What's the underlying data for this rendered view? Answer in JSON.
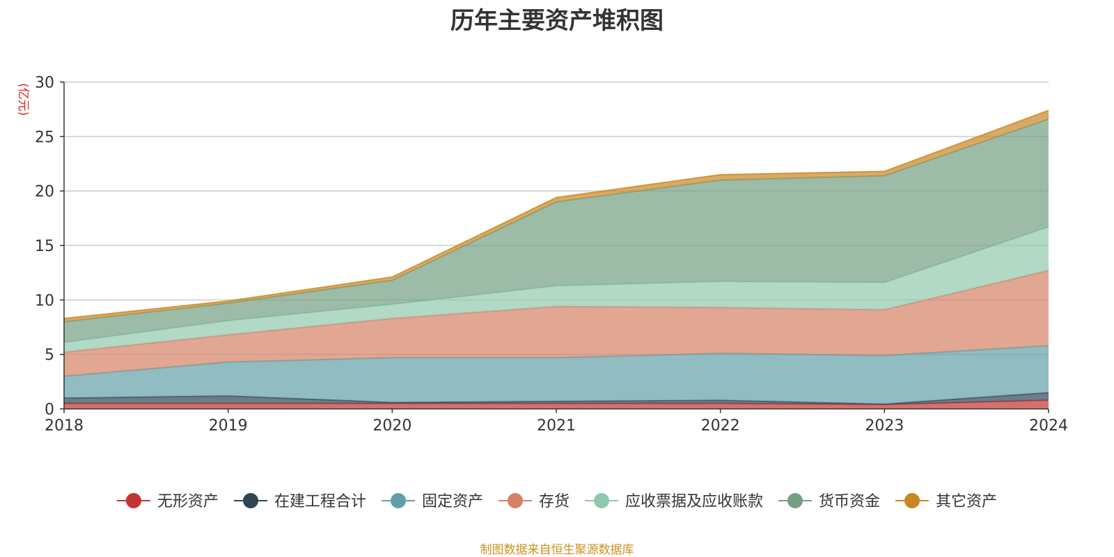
{
  "chart_data": {
    "type": "area",
    "stacked": true,
    "title": "历年主要资产堆积图",
    "unit_label": "(亿元)",
    "x": [
      "2018",
      "2019",
      "2020",
      "2021",
      "2022",
      "2023",
      "2024"
    ],
    "ylim": [
      0,
      30
    ],
    "yticks": [
      0,
      5,
      10,
      15,
      20,
      25,
      30
    ],
    "grid": true,
    "legend_position": "bottom",
    "series": [
      {
        "name": "无形资产",
        "color": "#c23531",
        "values": [
          0.5,
          0.5,
          0.5,
          0.5,
          0.5,
          0.4,
          0.8
        ]
      },
      {
        "name": "在建工程合计",
        "color": "#2f4554",
        "values": [
          0.5,
          0.7,
          0.1,
          0.2,
          0.3,
          0.05,
          0.7
        ]
      },
      {
        "name": "固定资产",
        "color": "#61a0a8",
        "values": [
          2.0,
          3.1,
          4.1,
          4.0,
          4.3,
          4.45,
          4.3
        ]
      },
      {
        "name": "存货",
        "color": "#d48265",
        "values": [
          2.2,
          2.5,
          3.6,
          4.7,
          4.2,
          4.2,
          6.9
        ]
      },
      {
        "name": "应收票据及应收账款",
        "color": "#91c7ae",
        "values": [
          0.9,
          1.3,
          1.3,
          1.9,
          2.4,
          2.5,
          4.0
        ]
      },
      {
        "name": "货币资金",
        "color": "#749f83",
        "values": [
          1.9,
          1.6,
          2.2,
          7.7,
          9.3,
          9.8,
          9.9
        ]
      },
      {
        "name": "其它资产",
        "color": "#ca8622",
        "values": [
          0.3,
          0.2,
          0.3,
          0.4,
          0.5,
          0.4,
          0.8
        ]
      }
    ]
  },
  "source_note": "制图数据来自恒生聚源数据库"
}
